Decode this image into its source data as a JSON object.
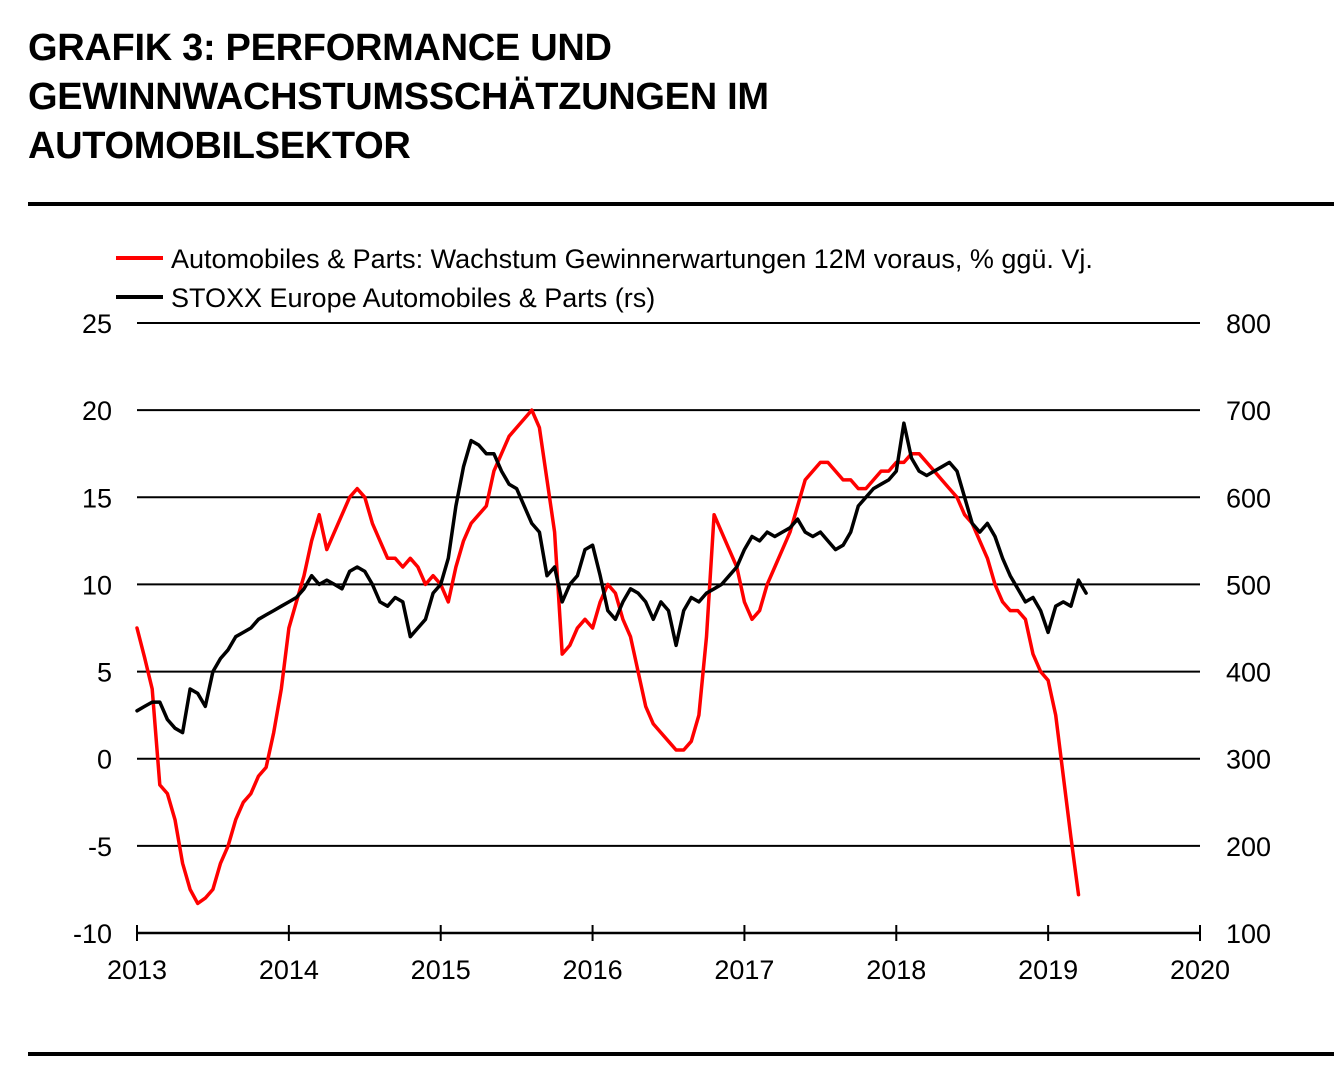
{
  "title_lines": [
    "GRAFIK 3: PERFORMANCE UND",
    "GEWINNWACHSTUMSSCHÄTZUNGEN IM",
    "AUTOMOBILSEKTOR"
  ],
  "colors": {
    "series_red": "#ff0000",
    "series_black": "#000000"
  },
  "chart_data": {
    "type": "line",
    "title": "GRAFIK 3: PERFORMANCE UND GEWINNWACHSTUMSSCHÄTZUNGEN IM AUTOMOBILSEKTOR",
    "x_range": [
      2013,
      2020
    ],
    "x_ticks": [
      "2013",
      "2014",
      "2015",
      "2016",
      "2017",
      "2018",
      "2019",
      "2020"
    ],
    "y_left_range": [
      -10,
      25
    ],
    "y_left_ticks": [
      "25",
      "20",
      "15",
      "10",
      "5",
      "0",
      "-5",
      "-10"
    ],
    "y_right_range": [
      100,
      800
    ],
    "y_right_ticks": [
      "800",
      "700",
      "600",
      "500",
      "400",
      "300",
      "200",
      "100"
    ],
    "gridlines": "horizontal",
    "legend_position": "top-left",
    "series": [
      {
        "name": "Automobiles & Parts: Wachstum Gewinnerwartungen 12M voraus, % ggü. Vj.",
        "axis": "left",
        "color": "#ff0000",
        "points": [
          [
            2013.0,
            7.5
          ],
          [
            2013.05,
            5.8
          ],
          [
            2013.1,
            4.0
          ],
          [
            2013.15,
            -1.5
          ],
          [
            2013.2,
            -2.0
          ],
          [
            2013.25,
            -3.5
          ],
          [
            2013.3,
            -6.0
          ],
          [
            2013.35,
            -7.5
          ],
          [
            2013.4,
            -8.3
          ],
          [
            2013.45,
            -8.0
          ],
          [
            2013.5,
            -7.5
          ],
          [
            2013.55,
            -6.0
          ],
          [
            2013.6,
            -5.0
          ],
          [
            2013.65,
            -3.5
          ],
          [
            2013.7,
            -2.5
          ],
          [
            2013.75,
            -2.0
          ],
          [
            2013.8,
            -1.0
          ],
          [
            2013.85,
            -0.5
          ],
          [
            2013.9,
            1.5
          ],
          [
            2013.95,
            4.0
          ],
          [
            2014.0,
            7.5
          ],
          [
            2014.05,
            9.0
          ],
          [
            2014.1,
            10.5
          ],
          [
            2014.15,
            12.5
          ],
          [
            2014.2,
            14.0
          ],
          [
            2014.25,
            12.0
          ],
          [
            2014.3,
            13.0
          ],
          [
            2014.35,
            14.0
          ],
          [
            2014.4,
            15.0
          ],
          [
            2014.45,
            15.5
          ],
          [
            2014.5,
            15.0
          ],
          [
            2014.55,
            13.5
          ],
          [
            2014.6,
            12.5
          ],
          [
            2014.65,
            11.5
          ],
          [
            2014.7,
            11.5
          ],
          [
            2014.75,
            11.0
          ],
          [
            2014.8,
            11.5
          ],
          [
            2014.85,
            11.0
          ],
          [
            2014.9,
            10.0
          ],
          [
            2014.95,
            10.5
          ],
          [
            2015.0,
            10.0
          ],
          [
            2015.05,
            9.0
          ],
          [
            2015.1,
            11.0
          ],
          [
            2015.15,
            12.5
          ],
          [
            2015.2,
            13.5
          ],
          [
            2015.25,
            14.0
          ],
          [
            2015.3,
            14.5
          ],
          [
            2015.35,
            16.5
          ],
          [
            2015.4,
            17.5
          ],
          [
            2015.45,
            18.5
          ],
          [
            2015.5,
            19.0
          ],
          [
            2015.55,
            19.5
          ],
          [
            2015.6,
            20.0
          ],
          [
            2015.65,
            19.0
          ],
          [
            2015.7,
            16.0
          ],
          [
            2015.75,
            13.0
          ],
          [
            2015.8,
            6.0
          ],
          [
            2015.85,
            6.5
          ],
          [
            2015.9,
            7.5
          ],
          [
            2015.95,
            8.0
          ],
          [
            2016.0,
            7.5
          ],
          [
            2016.05,
            9.0
          ],
          [
            2016.1,
            10.0
          ],
          [
            2016.15,
            9.5
          ],
          [
            2016.2,
            8.0
          ],
          [
            2016.25,
            7.0
          ],
          [
            2016.3,
            5.0
          ],
          [
            2016.35,
            3.0
          ],
          [
            2016.4,
            2.0
          ],
          [
            2016.45,
            1.5
          ],
          [
            2016.5,
            1.0
          ],
          [
            2016.55,
            0.5
          ],
          [
            2016.6,
            0.5
          ],
          [
            2016.65,
            1.0
          ],
          [
            2016.7,
            2.5
          ],
          [
            2016.75,
            7.0
          ],
          [
            2016.8,
            14.0
          ],
          [
            2016.85,
            13.0
          ],
          [
            2016.9,
            12.0
          ],
          [
            2016.95,
            11.0
          ],
          [
            2017.0,
            9.0
          ],
          [
            2017.05,
            8.0
          ],
          [
            2017.1,
            8.5
          ],
          [
            2017.15,
            10.0
          ],
          [
            2017.2,
            11.0
          ],
          [
            2017.25,
            12.0
          ],
          [
            2017.3,
            13.0
          ],
          [
            2017.35,
            14.5
          ],
          [
            2017.4,
            16.0
          ],
          [
            2017.45,
            16.5
          ],
          [
            2017.5,
            17.0
          ],
          [
            2017.55,
            17.0
          ],
          [
            2017.6,
            16.5
          ],
          [
            2017.65,
            16.0
          ],
          [
            2017.7,
            16.0
          ],
          [
            2017.75,
            15.5
          ],
          [
            2017.8,
            15.5
          ],
          [
            2017.85,
            16.0
          ],
          [
            2017.9,
            16.5
          ],
          [
            2017.95,
            16.5
          ],
          [
            2018.0,
            17.0
          ],
          [
            2018.05,
            17.0
          ],
          [
            2018.1,
            17.5
          ],
          [
            2018.15,
            17.5
          ],
          [
            2018.2,
            17.0
          ],
          [
            2018.25,
            16.5
          ],
          [
            2018.3,
            16.0
          ],
          [
            2018.35,
            15.5
          ],
          [
            2018.4,
            15.0
          ],
          [
            2018.45,
            14.0
          ],
          [
            2018.5,
            13.5
          ],
          [
            2018.55,
            12.5
          ],
          [
            2018.6,
            11.5
          ],
          [
            2018.65,
            10.0
          ],
          [
            2018.7,
            9.0
          ],
          [
            2018.75,
            8.5
          ],
          [
            2018.8,
            8.5
          ],
          [
            2018.85,
            8.0
          ],
          [
            2018.9,
            6.0
          ],
          [
            2018.95,
            5.0
          ],
          [
            2019.0,
            4.5
          ],
          [
            2019.05,
            2.5
          ],
          [
            2019.1,
            -1.0
          ],
          [
            2019.15,
            -4.5
          ],
          [
            2019.2,
            -7.8
          ]
        ]
      },
      {
        "name": "STOXX Europe Automobiles & Parts (rs)",
        "axis": "right",
        "color": "#000000",
        "points": [
          [
            2013.0,
            355
          ],
          [
            2013.05,
            360
          ],
          [
            2013.1,
            365
          ],
          [
            2013.15,
            365
          ],
          [
            2013.2,
            345
          ],
          [
            2013.25,
            335
          ],
          [
            2013.3,
            330
          ],
          [
            2013.35,
            380
          ],
          [
            2013.4,
            375
          ],
          [
            2013.45,
            360
          ],
          [
            2013.5,
            400
          ],
          [
            2013.55,
            415
          ],
          [
            2013.6,
            425
          ],
          [
            2013.65,
            440
          ],
          [
            2013.7,
            445
          ],
          [
            2013.75,
            450
          ],
          [
            2013.8,
            460
          ],
          [
            2013.85,
            465
          ],
          [
            2013.9,
            470
          ],
          [
            2013.95,
            475
          ],
          [
            2014.0,
            480
          ],
          [
            2014.05,
            485
          ],
          [
            2014.1,
            495
          ],
          [
            2014.15,
            510
          ],
          [
            2014.2,
            500
          ],
          [
            2014.25,
            505
          ],
          [
            2014.3,
            500
          ],
          [
            2014.35,
            495
          ],
          [
            2014.4,
            515
          ],
          [
            2014.45,
            520
          ],
          [
            2014.5,
            515
          ],
          [
            2014.55,
            500
          ],
          [
            2014.6,
            480
          ],
          [
            2014.65,
            475
          ],
          [
            2014.7,
            485
          ],
          [
            2014.75,
            480
          ],
          [
            2014.8,
            440
          ],
          [
            2014.85,
            450
          ],
          [
            2014.9,
            460
          ],
          [
            2014.95,
            490
          ],
          [
            2015.0,
            500
          ],
          [
            2015.05,
            530
          ],
          [
            2015.1,
            590
          ],
          [
            2015.15,
            635
          ],
          [
            2015.2,
            665
          ],
          [
            2015.25,
            660
          ],
          [
            2015.3,
            650
          ],
          [
            2015.35,
            650
          ],
          [
            2015.4,
            630
          ],
          [
            2015.45,
            615
          ],
          [
            2015.5,
            610
          ],
          [
            2015.55,
            590
          ],
          [
            2015.6,
            570
          ],
          [
            2015.65,
            560
          ],
          [
            2015.7,
            510
          ],
          [
            2015.75,
            520
          ],
          [
            2015.8,
            480
          ],
          [
            2015.85,
            500
          ],
          [
            2015.9,
            510
          ],
          [
            2015.95,
            540
          ],
          [
            2016.0,
            545
          ],
          [
            2016.05,
            510
          ],
          [
            2016.1,
            470
          ],
          [
            2016.15,
            460
          ],
          [
            2016.2,
            480
          ],
          [
            2016.25,
            495
          ],
          [
            2016.3,
            490
          ],
          [
            2016.35,
            480
          ],
          [
            2016.4,
            460
          ],
          [
            2016.45,
            480
          ],
          [
            2016.5,
            470
          ],
          [
            2016.55,
            430
          ],
          [
            2016.6,
            470
          ],
          [
            2016.65,
            485
          ],
          [
            2016.7,
            480
          ],
          [
            2016.75,
            490
          ],
          [
            2016.8,
            495
          ],
          [
            2016.85,
            500
          ],
          [
            2016.9,
            510
          ],
          [
            2016.95,
            520
          ],
          [
            2017.0,
            540
          ],
          [
            2017.05,
            555
          ],
          [
            2017.1,
            550
          ],
          [
            2017.15,
            560
          ],
          [
            2017.2,
            555
          ],
          [
            2017.25,
            560
          ],
          [
            2017.3,
            565
          ],
          [
            2017.35,
            575
          ],
          [
            2017.4,
            560
          ],
          [
            2017.45,
            555
          ],
          [
            2017.5,
            560
          ],
          [
            2017.55,
            550
          ],
          [
            2017.6,
            540
          ],
          [
            2017.65,
            545
          ],
          [
            2017.7,
            560
          ],
          [
            2017.75,
            590
          ],
          [
            2017.8,
            600
          ],
          [
            2017.85,
            610
          ],
          [
            2017.9,
            615
          ],
          [
            2017.95,
            620
          ],
          [
            2018.0,
            630
          ],
          [
            2018.05,
            685
          ],
          [
            2018.1,
            645
          ],
          [
            2018.15,
            630
          ],
          [
            2018.2,
            625
          ],
          [
            2018.25,
            630
          ],
          [
            2018.3,
            635
          ],
          [
            2018.35,
            640
          ],
          [
            2018.4,
            630
          ],
          [
            2018.45,
            600
          ],
          [
            2018.5,
            570
          ],
          [
            2018.55,
            560
          ],
          [
            2018.6,
            570
          ],
          [
            2018.65,
            555
          ],
          [
            2018.7,
            530
          ],
          [
            2018.75,
            510
          ],
          [
            2018.8,
            495
          ],
          [
            2018.85,
            480
          ],
          [
            2018.9,
            485
          ],
          [
            2018.95,
            470
          ],
          [
            2019.0,
            445
          ],
          [
            2019.05,
            475
          ],
          [
            2019.1,
            480
          ],
          [
            2019.15,
            475
          ],
          [
            2019.2,
            505
          ],
          [
            2019.25,
            490
          ]
        ]
      }
    ]
  }
}
